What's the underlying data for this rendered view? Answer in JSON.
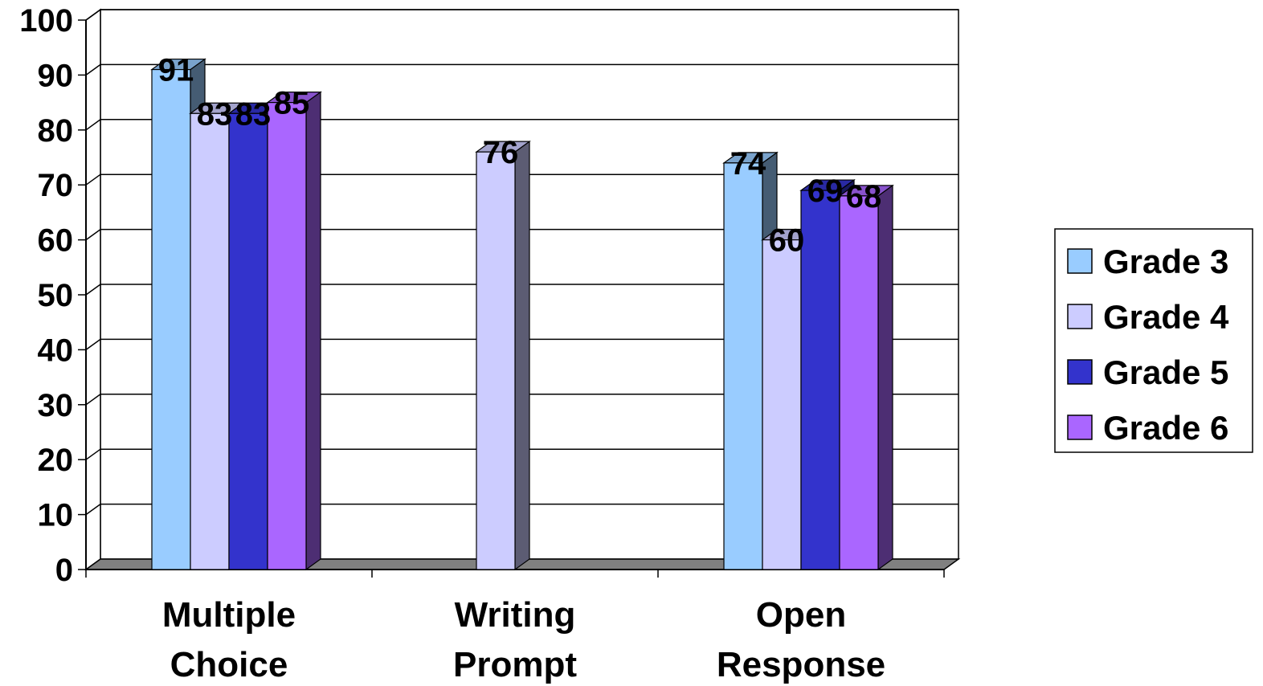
{
  "chart_data": {
    "type": "bar",
    "categories": [
      "Multiple Choice",
      "Writing Prompt",
      "Open Response"
    ],
    "category_lines": [
      [
        "Multiple",
        "Choice"
      ],
      [
        "Writing",
        "Prompt"
      ],
      [
        "Open",
        "Response"
      ]
    ],
    "series": [
      {
        "name": "Grade 3",
        "color": "#99CCFF",
        "values": [
          91,
          null,
          74
        ]
      },
      {
        "name": "Grade 4",
        "color": "#CCCCFF",
        "values": [
          83,
          76,
          60
        ]
      },
      {
        "name": "Grade 5",
        "color": "#3333CC",
        "values": [
          83,
          null,
          69
        ]
      },
      {
        "name": "Grade 6",
        "color": "#AA66FF",
        "values": [
          85,
          null,
          68
        ]
      }
    ],
    "ylim": [
      0,
      100
    ],
    "yticks": [
      0,
      10,
      20,
      30,
      40,
      50,
      60,
      70,
      80,
      90,
      100
    ],
    "grid": true,
    "legend": "right",
    "style": "3d-clustered-bar"
  }
}
